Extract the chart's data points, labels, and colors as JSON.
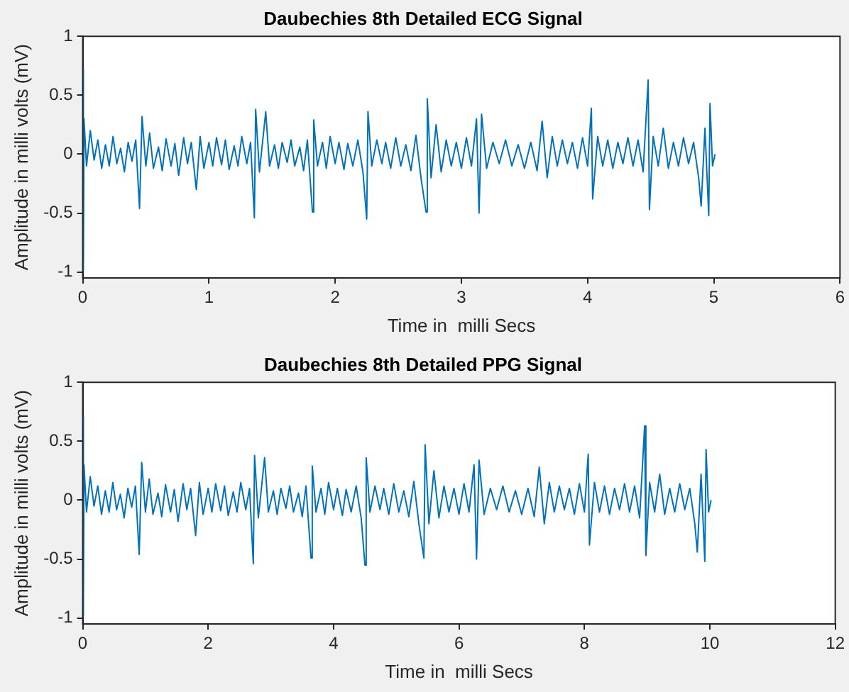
{
  "chart_data": [
    {
      "type": "line",
      "title": "Daubechies 8th Detailed ECG Signal",
      "xlabel": "Time in  milli Secs",
      "ylabel": "Amplitude in milli volts (mV)",
      "xlim": [
        0,
        6
      ],
      "xticks": [
        0,
        1,
        2,
        3,
        4,
        5,
        6
      ],
      "ylim": [
        -1.05,
        1
      ],
      "yticks": [
        -1,
        -0.5,
        0,
        0.5,
        1
      ],
      "grid": false,
      "legend": false,
      "x": [
        0,
        0.005,
        0.01,
        0.03,
        0.06,
        0.09,
        0.12,
        0.15,
        0.18,
        0.21,
        0.24,
        0.27,
        0.3,
        0.33,
        0.36,
        0.39,
        0.42,
        0.45,
        0.47,
        0.5,
        0.53,
        0.56,
        0.6,
        0.63,
        0.66,
        0.7,
        0.73,
        0.76,
        0.8,
        0.83,
        0.86,
        0.9,
        0.93,
        0.96,
        1.0,
        1.03,
        1.06,
        1.1,
        1.13,
        1.16,
        1.2,
        1.23,
        1.26,
        1.3,
        1.33,
        1.36,
        1.37,
        1.4,
        1.45,
        1.48,
        1.52,
        1.55,
        1.58,
        1.62,
        1.65,
        1.68,
        1.72,
        1.75,
        1.78,
        1.82,
        1.83,
        1.86,
        1.9,
        1.93,
        1.96,
        2.0,
        2.03,
        2.07,
        2.1,
        2.14,
        2.18,
        2.22,
        2.25,
        2.26,
        2.29,
        2.33,
        2.37,
        2.4,
        2.44,
        2.48,
        2.52,
        2.56,
        2.6,
        2.64,
        2.68,
        2.72,
        2.73,
        2.76,
        2.8,
        2.84,
        2.88,
        2.92,
        2.96,
        3.0,
        3.04,
        3.08,
        3.12,
        3.14,
        3.16,
        3.2,
        3.25,
        3.3,
        3.35,
        3.4,
        3.45,
        3.5,
        3.55,
        3.6,
        3.64,
        3.68,
        3.72,
        3.76,
        3.8,
        3.84,
        3.88,
        3.92,
        3.96,
        4.0,
        4.03,
        4.04,
        4.08,
        4.12,
        4.16,
        4.2,
        4.24,
        4.28,
        4.32,
        4.36,
        4.4,
        4.44,
        4.48,
        4.49,
        4.52,
        4.56,
        4.6,
        4.64,
        4.68,
        4.72,
        4.76,
        4.8,
        4.84,
        4.88,
        4.9,
        4.93,
        4.96,
        4.97,
        4.99,
        5.01
      ],
      "series": [
        {
          "color": "#0072bd",
          "values": [
            0.72,
            -0.98,
            0.3,
            -0.1,
            0.2,
            -0.05,
            0.12,
            -0.12,
            0.08,
            -0.1,
            0.15,
            -0.08,
            0.05,
            -0.15,
            0.1,
            -0.06,
            0.12,
            -0.46,
            0.32,
            -0.1,
            0.18,
            -0.12,
            0.06,
            -0.14,
            0.13,
            -0.1,
            0.09,
            -0.18,
            0.14,
            -0.08,
            0.1,
            -0.3,
            0.15,
            -0.12,
            0.1,
            -0.1,
            0.14,
            -0.09,
            0.12,
            -0.13,
            0.07,
            -0.1,
            0.15,
            -0.08,
            0.1,
            -0.54,
            0.38,
            -0.15,
            0.36,
            -0.1,
            0.08,
            -0.12,
            0.1,
            -0.07,
            0.12,
            -0.1,
            0.06,
            -0.14,
            0.12,
            -0.49,
            0.29,
            -0.1,
            0.1,
            -0.12,
            0.15,
            -0.08,
            0.1,
            -0.13,
            0.09,
            -0.1,
            0.12,
            -0.15,
            -0.55,
            0.36,
            -0.1,
            0.12,
            -0.08,
            0.1,
            -0.12,
            0.14,
            -0.1,
            0.08,
            -0.14,
            0.16,
            -0.2,
            -0.49,
            0.47,
            -0.2,
            0.25,
            -0.15,
            0.12,
            -0.1,
            0.1,
            -0.12,
            0.14,
            -0.1,
            0.3,
            -0.5,
            0.34,
            -0.12,
            0.1,
            -0.08,
            0.12,
            -0.1,
            0.08,
            -0.12,
            0.1,
            -0.14,
            0.28,
            -0.2,
            0.15,
            -0.1,
            0.12,
            -0.08,
            0.1,
            -0.12,
            0.14,
            -0.1,
            0.39,
            -0.38,
            0.15,
            -0.1,
            0.12,
            -0.12,
            0.1,
            -0.08,
            0.14,
            -0.1,
            0.12,
            -0.15,
            0.63,
            -0.47,
            0.15,
            -0.1,
            0.22,
            -0.12,
            0.1,
            -0.1,
            0.14,
            -0.08,
            0.1,
            -0.2,
            -0.44,
            0.22,
            -0.52,
            0.43,
            -0.1,
            0.0
          ]
        }
      ]
    },
    {
      "type": "line",
      "title": "Daubechies 8th Detailed PPG Signal",
      "xlabel": "Time in  milli Secs",
      "ylabel": "Amplitude in milli volts (mV)",
      "xlim": [
        0,
        12
      ],
      "xticks": [
        0,
        2,
        4,
        6,
        8,
        10,
        12
      ],
      "ylim": [
        -1.05,
        1
      ],
      "yticks": [
        -1,
        -0.5,
        0,
        0.5,
        1
      ],
      "grid": false,
      "legend": false,
      "x": [
        0,
        0.01,
        0.02,
        0.06,
        0.12,
        0.18,
        0.24,
        0.3,
        0.36,
        0.42,
        0.48,
        0.54,
        0.6,
        0.66,
        0.72,
        0.78,
        0.84,
        0.9,
        0.94,
        1.0,
        1.06,
        1.12,
        1.2,
        1.26,
        1.32,
        1.4,
        1.46,
        1.52,
        1.6,
        1.66,
        1.72,
        1.8,
        1.86,
        1.92,
        2.0,
        2.06,
        2.12,
        2.2,
        2.26,
        2.32,
        2.4,
        2.46,
        2.52,
        2.6,
        2.66,
        2.72,
        2.74,
        2.8,
        2.9,
        2.96,
        3.04,
        3.1,
        3.16,
        3.24,
        3.3,
        3.36,
        3.44,
        3.5,
        3.56,
        3.64,
        3.66,
        3.72,
        3.8,
        3.86,
        3.92,
        4.0,
        4.06,
        4.14,
        4.2,
        4.28,
        4.36,
        4.44,
        4.5,
        4.52,
        4.58,
        4.66,
        4.74,
        4.8,
        4.88,
        4.96,
        5.04,
        5.12,
        5.2,
        5.28,
        5.36,
        5.44,
        5.46,
        5.52,
        5.6,
        5.68,
        5.76,
        5.84,
        5.92,
        6.0,
        6.08,
        6.16,
        6.24,
        6.28,
        6.32,
        6.4,
        6.5,
        6.6,
        6.7,
        6.8,
        6.9,
        7.0,
        7.1,
        7.2,
        7.28,
        7.36,
        7.44,
        7.52,
        7.6,
        7.68,
        7.76,
        7.84,
        7.92,
        8.0,
        8.06,
        8.08,
        8.16,
        8.24,
        8.32,
        8.4,
        8.48,
        8.56,
        8.64,
        8.72,
        8.8,
        8.88,
        8.96,
        8.98,
        9.04,
        9.12,
        9.2,
        9.28,
        9.36,
        9.44,
        9.52,
        9.6,
        9.68,
        9.76,
        9.8,
        9.86,
        9.92,
        9.94,
        9.98,
        10.02
      ],
      "series": [
        {
          "color": "#0072bd",
          "values": [
            0.72,
            -0.98,
            0.3,
            -0.1,
            0.2,
            -0.05,
            0.12,
            -0.12,
            0.08,
            -0.1,
            0.15,
            -0.08,
            0.05,
            -0.15,
            0.1,
            -0.06,
            0.12,
            -0.46,
            0.32,
            -0.1,
            0.18,
            -0.12,
            0.06,
            -0.14,
            0.13,
            -0.1,
            0.09,
            -0.18,
            0.14,
            -0.08,
            0.1,
            -0.3,
            0.15,
            -0.12,
            0.1,
            -0.1,
            0.14,
            -0.09,
            0.12,
            -0.13,
            0.07,
            -0.1,
            0.15,
            -0.08,
            0.1,
            -0.54,
            0.38,
            -0.15,
            0.36,
            -0.1,
            0.08,
            -0.12,
            0.1,
            -0.07,
            0.12,
            -0.1,
            0.06,
            -0.14,
            0.12,
            -0.49,
            0.29,
            -0.1,
            0.1,
            -0.12,
            0.15,
            -0.08,
            0.1,
            -0.13,
            0.09,
            -0.1,
            0.12,
            -0.15,
            -0.55,
            0.36,
            -0.1,
            0.12,
            -0.08,
            0.1,
            -0.12,
            0.14,
            -0.1,
            0.08,
            -0.14,
            0.16,
            -0.2,
            -0.49,
            0.47,
            -0.2,
            0.25,
            -0.15,
            0.12,
            -0.1,
            0.1,
            -0.12,
            0.14,
            -0.1,
            0.3,
            -0.5,
            0.34,
            -0.12,
            0.1,
            -0.08,
            0.12,
            -0.1,
            0.08,
            -0.12,
            0.1,
            -0.14,
            0.28,
            -0.2,
            0.15,
            -0.1,
            0.12,
            -0.08,
            0.1,
            -0.12,
            0.14,
            -0.1,
            0.39,
            -0.38,
            0.15,
            -0.1,
            0.12,
            -0.12,
            0.1,
            -0.08,
            0.14,
            -0.1,
            0.12,
            -0.15,
            0.63,
            -0.47,
            0.15,
            -0.1,
            0.22,
            -0.12,
            0.1,
            -0.1,
            0.14,
            -0.08,
            0.1,
            -0.2,
            -0.44,
            0.22,
            -0.52,
            0.43,
            -0.1,
            0.0
          ]
        }
      ]
    }
  ]
}
